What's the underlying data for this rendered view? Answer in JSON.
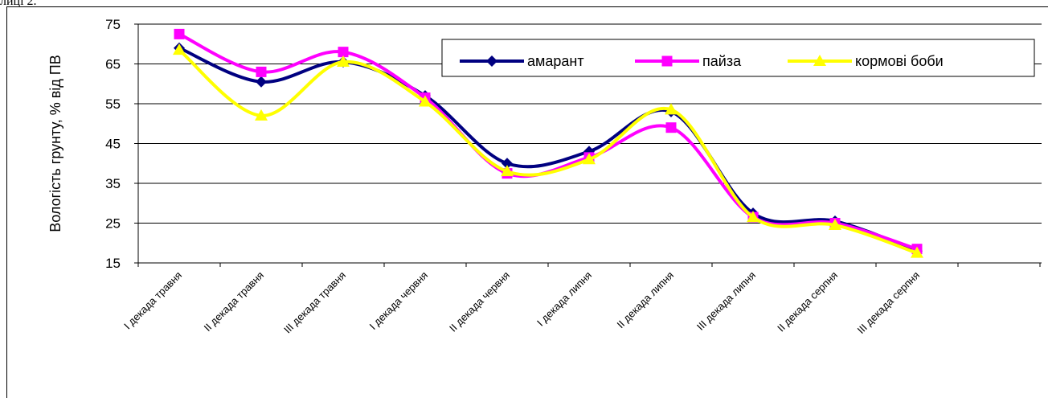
{
  "corner_text": "лиці 2.",
  "chart_data": {
    "type": "line",
    "title": "",
    "xlabel": "",
    "ylabel": "Вологість грунту, % від ПВ",
    "ylim": [
      15,
      75
    ],
    "yticks": [
      15,
      25,
      35,
      45,
      55,
      65,
      75
    ],
    "grid": true,
    "smooth": true,
    "legend_position": "top-right",
    "categories": [
      "I декада травня",
      "II декада травня",
      "III декада травня",
      "I декада червня",
      "II декада червня",
      "I декада липня",
      "II декада липня",
      "III декада липня",
      "II декада серпня",
      "III декада серпня"
    ],
    "series": [
      {
        "name": "амарант",
        "color": "#000080",
        "marker": "diamond",
        "values": [
          69,
          60.5,
          65.5,
          57,
          40,
          43,
          53,
          27.5,
          25.5,
          18
        ]
      },
      {
        "name": "пайза",
        "color": "#FF00FF",
        "marker": "square",
        "values": [
          72.5,
          63,
          68,
          56.5,
          37.5,
          41.5,
          49,
          26.5,
          25,
          18.5
        ]
      },
      {
        "name": "кормові боби",
        "color": "#FFFF00",
        "marker": "triangle",
        "values": [
          68.5,
          52,
          65.5,
          55.5,
          38,
          41,
          53.5,
          26.5,
          24.5,
          17.5
        ]
      }
    ]
  }
}
